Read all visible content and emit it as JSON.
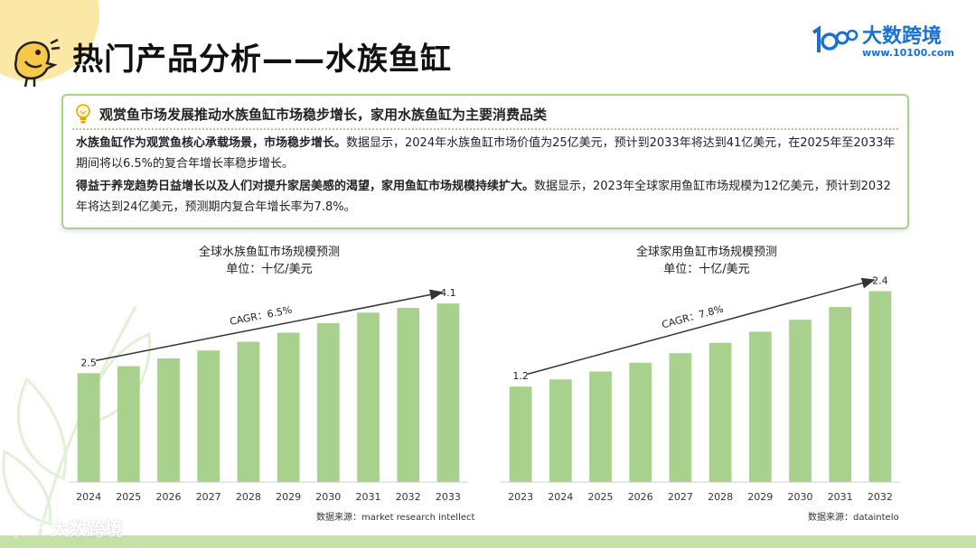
{
  "page": {
    "title": "热门产品分析——水族鱼缸",
    "brand_name": "大数跨境",
    "brand_url": "www.10100.com",
    "watermark": "大数跨境"
  },
  "summary": {
    "heading": "观赏鱼市场发展推动水族鱼缸市场稳步增长，家用水族鱼缸为主要消费品类",
    "p1_bold": "水族鱼缸作为观赏鱼核心承载场景，市场稳步增长。",
    "p1_text": "数据显示，2024年水族鱼缸市场价值为25亿美元，预计到2033年将达到41亿美元，在2025年至2033年期间将以6.5%的复合年增长率稳步增长。",
    "p2_bold": "得益于养宠趋势日益增长以及人们对提升家居美感的渴望，家用鱼缸市场规模持续扩大。",
    "p2_text": "数据显示，2023年全球家用鱼缸市场规模为12亿美元，预计到2032年将达到24亿美元，预测期内复合年增长率为7.8%。"
  },
  "chart_data": [
    {
      "type": "bar",
      "title": "全球水族鱼缸市场规模预测",
      "subtitle": "单位：十亿/美元",
      "categories": [
        "2024",
        "2025",
        "2026",
        "2027",
        "2028",
        "2029",
        "2030",
        "2031",
        "2032",
        "2033"
      ],
      "values": [
        2.5,
        2.66,
        2.84,
        3.02,
        3.22,
        3.43,
        3.65,
        3.89,
        4.0,
        4.1
      ],
      "data_labels": [
        {
          "index": 0,
          "text": "2.5"
        },
        {
          "index": 9,
          "text": "4.1"
        }
      ],
      "annotation": "CAGR：6.5%",
      "ylim": [
        0,
        4.6
      ],
      "grid": false,
      "color": "#a9d18e",
      "source": "数据来源：market research intellect"
    },
    {
      "type": "bar",
      "title": "全球家用鱼缸市场规模预测",
      "subtitle": "单位：十亿/美元",
      "categories": [
        "2023",
        "2024",
        "2025",
        "2026",
        "2027",
        "2028",
        "2029",
        "2030",
        "2031",
        "2032"
      ],
      "values": [
        1.2,
        1.29,
        1.39,
        1.5,
        1.62,
        1.75,
        1.89,
        2.04,
        2.2,
        2.4
      ],
      "data_labels": [
        {
          "index": 0,
          "text": "1.2"
        },
        {
          "index": 9,
          "text": "2.4"
        }
      ],
      "annotation": "CAGR：7.8%",
      "ylim": [
        0,
        2.7
      ],
      "grid": false,
      "color": "#a9d18e",
      "source": "数据来源：dataintelo"
    }
  ]
}
